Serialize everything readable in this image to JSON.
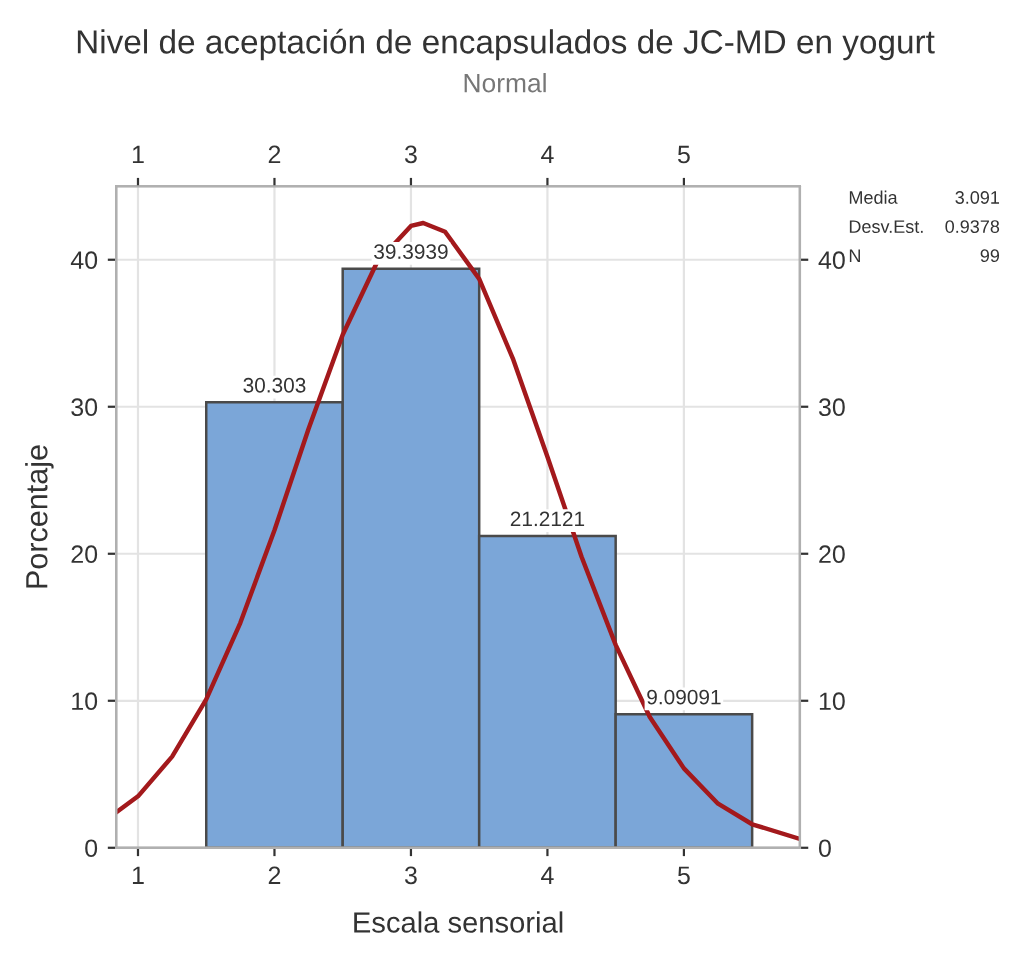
{
  "chart_data": {
    "type": "histogram",
    "title": "Nivel de aceptación de encapsulados de JC-MD en yogurt",
    "subtitle": "Normal",
    "xlabel": "Escala sensorial",
    "ylabel": "Porcentaje",
    "bins": [
      1.5,
      2.5,
      3.5,
      4.5,
      5.5
    ],
    "values": [
      30.303,
      39.3939,
      21.2121,
      9.09091
    ],
    "color": "#7ba6d8",
    "value_labels": [
      "30.303",
      "39.3939",
      "21.2121",
      "9.09091"
    ],
    "series": [
      {
        "type": "line",
        "color": "#a3191c",
        "x": [
          0.84,
          1.0,
          1.25,
          1.5,
          1.75,
          2.0,
          2.25,
          2.5,
          2.75,
          3.0,
          3.09,
          3.25,
          3.5,
          3.75,
          4.0,
          4.25,
          4.5,
          4.75,
          5.0,
          5.25,
          5.5,
          5.85
        ],
        "values": [
          2.4,
          3.5,
          6.2,
          10.1,
          15.3,
          21.6,
          28.5,
          34.9,
          39.8,
          42.3,
          42.5,
          41.9,
          38.7,
          33.2,
          26.6,
          19.8,
          13.8,
          8.9,
          5.4,
          3.0,
          1.6,
          0.6
        ]
      }
    ],
    "xlim": [
      0.84,
      5.85
    ],
    "xticks": [
      1,
      2,
      3,
      4,
      5
    ],
    "x2lim": [
      0.84,
      5.85
    ],
    "x2ticks": [
      1,
      2,
      3,
      4,
      5
    ],
    "ylim": [
      0,
      45
    ],
    "yticks": [
      0,
      10,
      20,
      30,
      40
    ],
    "y2lim": [
      0,
      45
    ],
    "y2ticks": [
      0,
      10,
      20,
      30,
      40
    ],
    "grid": true,
    "annotations": [
      "Media 3.091",
      "Desv.Est. 0.9378",
      "N 99"
    ]
  }
}
